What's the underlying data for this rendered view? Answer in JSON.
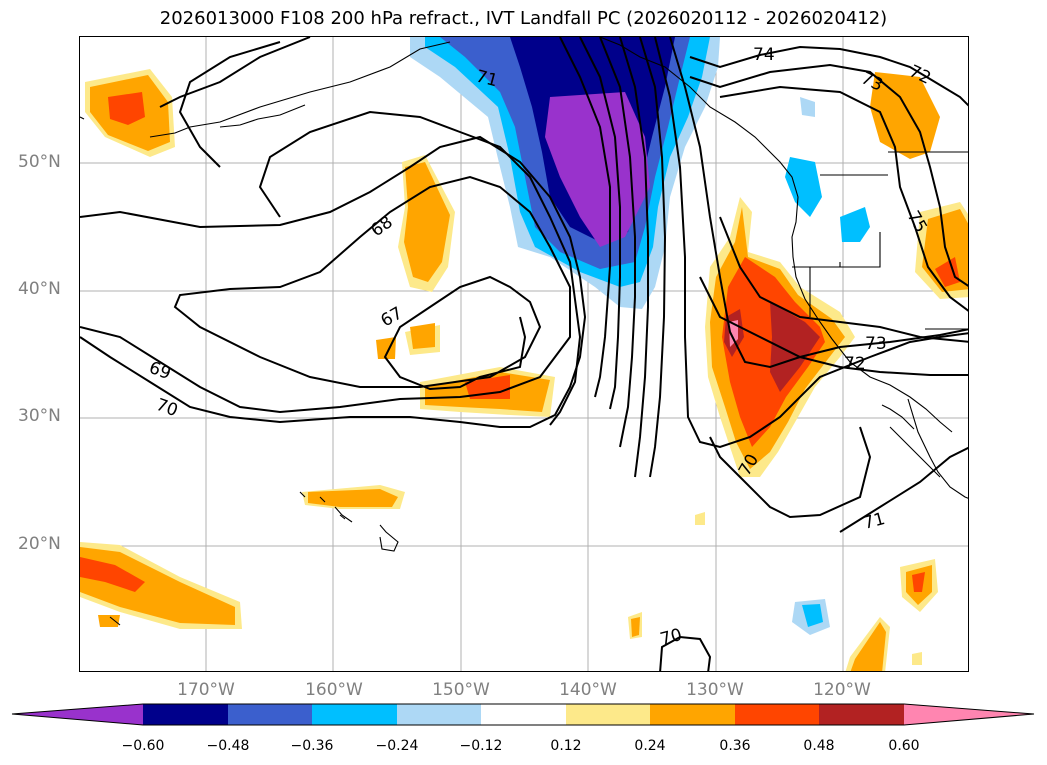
{
  "title": "2026013000 F108 200 hPa refract., IVT Landfall PC (2026020112 - 2026020412)",
  "lat_labels": [
    "50°N",
    "40°N",
    "30°N",
    "20°N"
  ],
  "lon_labels": [
    "170°W",
    "160°W",
    "150°W",
    "140°W",
    "130°W",
    "120°W"
  ],
  "contour_labels": [
    "74",
    "73",
    "72",
    "71",
    "68",
    "75",
    "67",
    "69",
    "70",
    "73",
    "72",
    "70",
    "71",
    "70"
  ],
  "colorbar": {
    "ticks": [
      "−0.60",
      "−0.48",
      "−0.36",
      "−0.24",
      "−0.12",
      "0.12",
      "0.24",
      "0.36",
      "0.48",
      "0.60"
    ],
    "colors": [
      "#9932cc",
      "#00008b",
      "#3b5fcd",
      "#00bfff",
      "#add8f5",
      "#ffffff",
      "#fde98a",
      "#ffa500",
      "#ff4500",
      "#b22222",
      "#ff85b0"
    ]
  }
}
